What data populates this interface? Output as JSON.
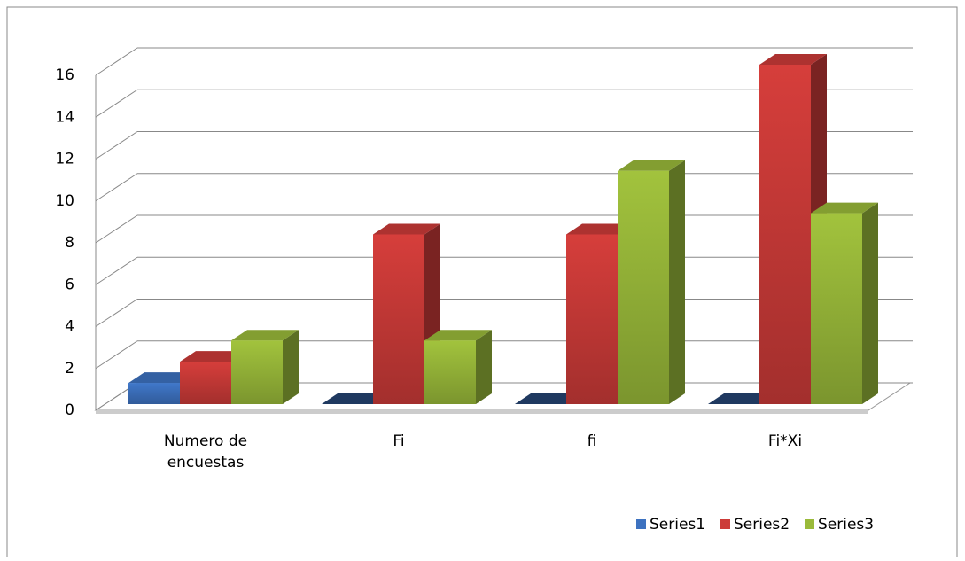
{
  "chart_data": {
    "type": "bar3d",
    "categories": [
      "Numero de encuestas",
      "Fi",
      "fi",
      "Fi*Xi"
    ],
    "series": [
      {
        "name": "Series1",
        "color": "#3d72c0",
        "values": [
          1,
          0,
          0,
          0
        ]
      },
      {
        "name": "Series2",
        "color": "#cc3b38",
        "values": [
          2,
          8,
          8,
          16
        ]
      },
      {
        "name": "Series3",
        "color": "#9aba3a",
        "values": [
          3,
          3,
          11,
          9
        ]
      }
    ],
    "ylim": [
      0,
      16
    ],
    "yticks": [
      0,
      2,
      4,
      6,
      8,
      10,
      12,
      14,
      16
    ],
    "grid": true,
    "legend": "bottom"
  }
}
